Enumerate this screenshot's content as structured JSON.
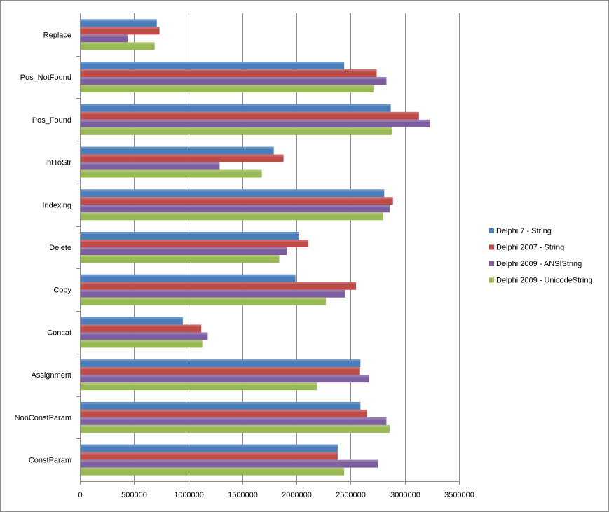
{
  "chart_data": {
    "type": "bar",
    "orientation": "horizontal",
    "title": "",
    "xlabel": "",
    "ylabel": "",
    "xlim": [
      0,
      3500000
    ],
    "x_ticks": [
      "0",
      "500000",
      "1000000",
      "1500000",
      "2000000",
      "2500000",
      "3000000",
      "3500000"
    ],
    "grid": "vertical gridlines on",
    "legend_position": "right",
    "categories": [
      "Replace",
      "Pos_NotFound",
      "Pos_Found",
      "IntToStr",
      "Indexing",
      "Delete",
      "Copy",
      "Concat",
      "Assignment",
      "NonConstParam",
      "ConstParam"
    ],
    "series": [
      {
        "name": "Delphi 7 - String",
        "color": "#4a7ebb",
        "values": [
          710000,
          2440000,
          2870000,
          1790000,
          2810000,
          2020000,
          1990000,
          950000,
          2590000,
          2590000,
          2380000
        ]
      },
      {
        "name": "Delphi 2007 - String",
        "color": "#be4b48",
        "values": [
          735000,
          2740000,
          3130000,
          1880000,
          2890000,
          2110000,
          2550000,
          1120000,
          2580000,
          2650000,
          2380000
        ]
      },
      {
        "name": "Delphi 2009 - ANSIString",
        "color": "#7d5fa0",
        "values": [
          440000,
          2830000,
          3230000,
          1290000,
          2860000,
          1910000,
          2450000,
          1180000,
          2670000,
          2830000,
          2750000
        ]
      },
      {
        "name": "Delphi 2009 - UnicodeString",
        "color": "#98b954",
        "values": [
          690000,
          2710000,
          2880000,
          1680000,
          2800000,
          1840000,
          2270000,
          1130000,
          2190000,
          2860000,
          2440000
        ]
      }
    ]
  }
}
